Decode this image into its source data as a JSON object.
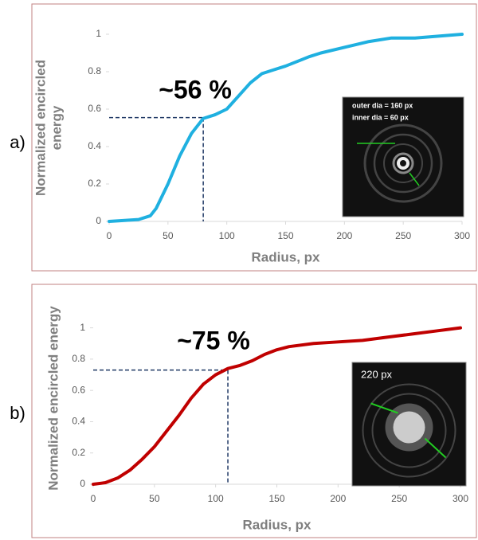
{
  "chart_data": [
    {
      "type": "line",
      "panel_label": "a)",
      "xlabel": "Radius, px",
      "ylabel": [
        "Normalized encircled",
        "energy"
      ],
      "annotation": "~56 %",
      "marker": {
        "x": 80,
        "y": 0.555
      },
      "inset_text": [
        "outer dia = 160 px",
        "inner dia  =  60 px"
      ],
      "color": "#1fb0e0",
      "x": [
        0,
        25,
        35,
        40,
        50,
        60,
        70,
        80,
        90,
        100,
        110,
        120,
        130,
        140,
        150,
        170,
        180,
        200,
        220,
        240,
        260,
        280,
        300
      ],
      "values": [
        0,
        0.01,
        0.03,
        0.07,
        0.2,
        0.35,
        0.47,
        0.55,
        0.57,
        0.6,
        0.67,
        0.74,
        0.79,
        0.81,
        0.83,
        0.88,
        0.9,
        0.93,
        0.96,
        0.98,
        0.98,
        0.99,
        1
      ],
      "xlim": [
        0,
        300
      ],
      "xticks": [
        0,
        50,
        100,
        150,
        200,
        250,
        300
      ],
      "ylim": [
        0,
        1
      ],
      "yticks": [
        0,
        0.2,
        0.4,
        0.6,
        0.8,
        1
      ]
    },
    {
      "type": "line",
      "panel_label": "b)",
      "xlabel": "Radius, px",
      "ylabel": "Normalized encircled energy",
      "annotation": "~75 %",
      "marker": {
        "x": 110,
        "y": 0.73
      },
      "inset_text": [
        "220 px"
      ],
      "color": "#c00000",
      "x": [
        0,
        10,
        20,
        30,
        40,
        50,
        60,
        70,
        80,
        90,
        100,
        110,
        120,
        130,
        140,
        150,
        160,
        180,
        200,
        220,
        240,
        260,
        280,
        300
      ],
      "values": [
        0,
        0.01,
        0.04,
        0.09,
        0.16,
        0.24,
        0.34,
        0.44,
        0.55,
        0.64,
        0.7,
        0.74,
        0.76,
        0.79,
        0.83,
        0.86,
        0.88,
        0.9,
        0.91,
        0.92,
        0.94,
        0.96,
        0.98,
        1
      ],
      "xlim": [
        0,
        300
      ],
      "xticks": [
        0,
        50,
        100,
        150,
        200,
        250,
        300
      ],
      "ylim": [
        0,
        1.1
      ],
      "yticks": [
        0,
        0.2,
        0.4,
        0.6,
        0.8,
        1
      ]
    }
  ]
}
